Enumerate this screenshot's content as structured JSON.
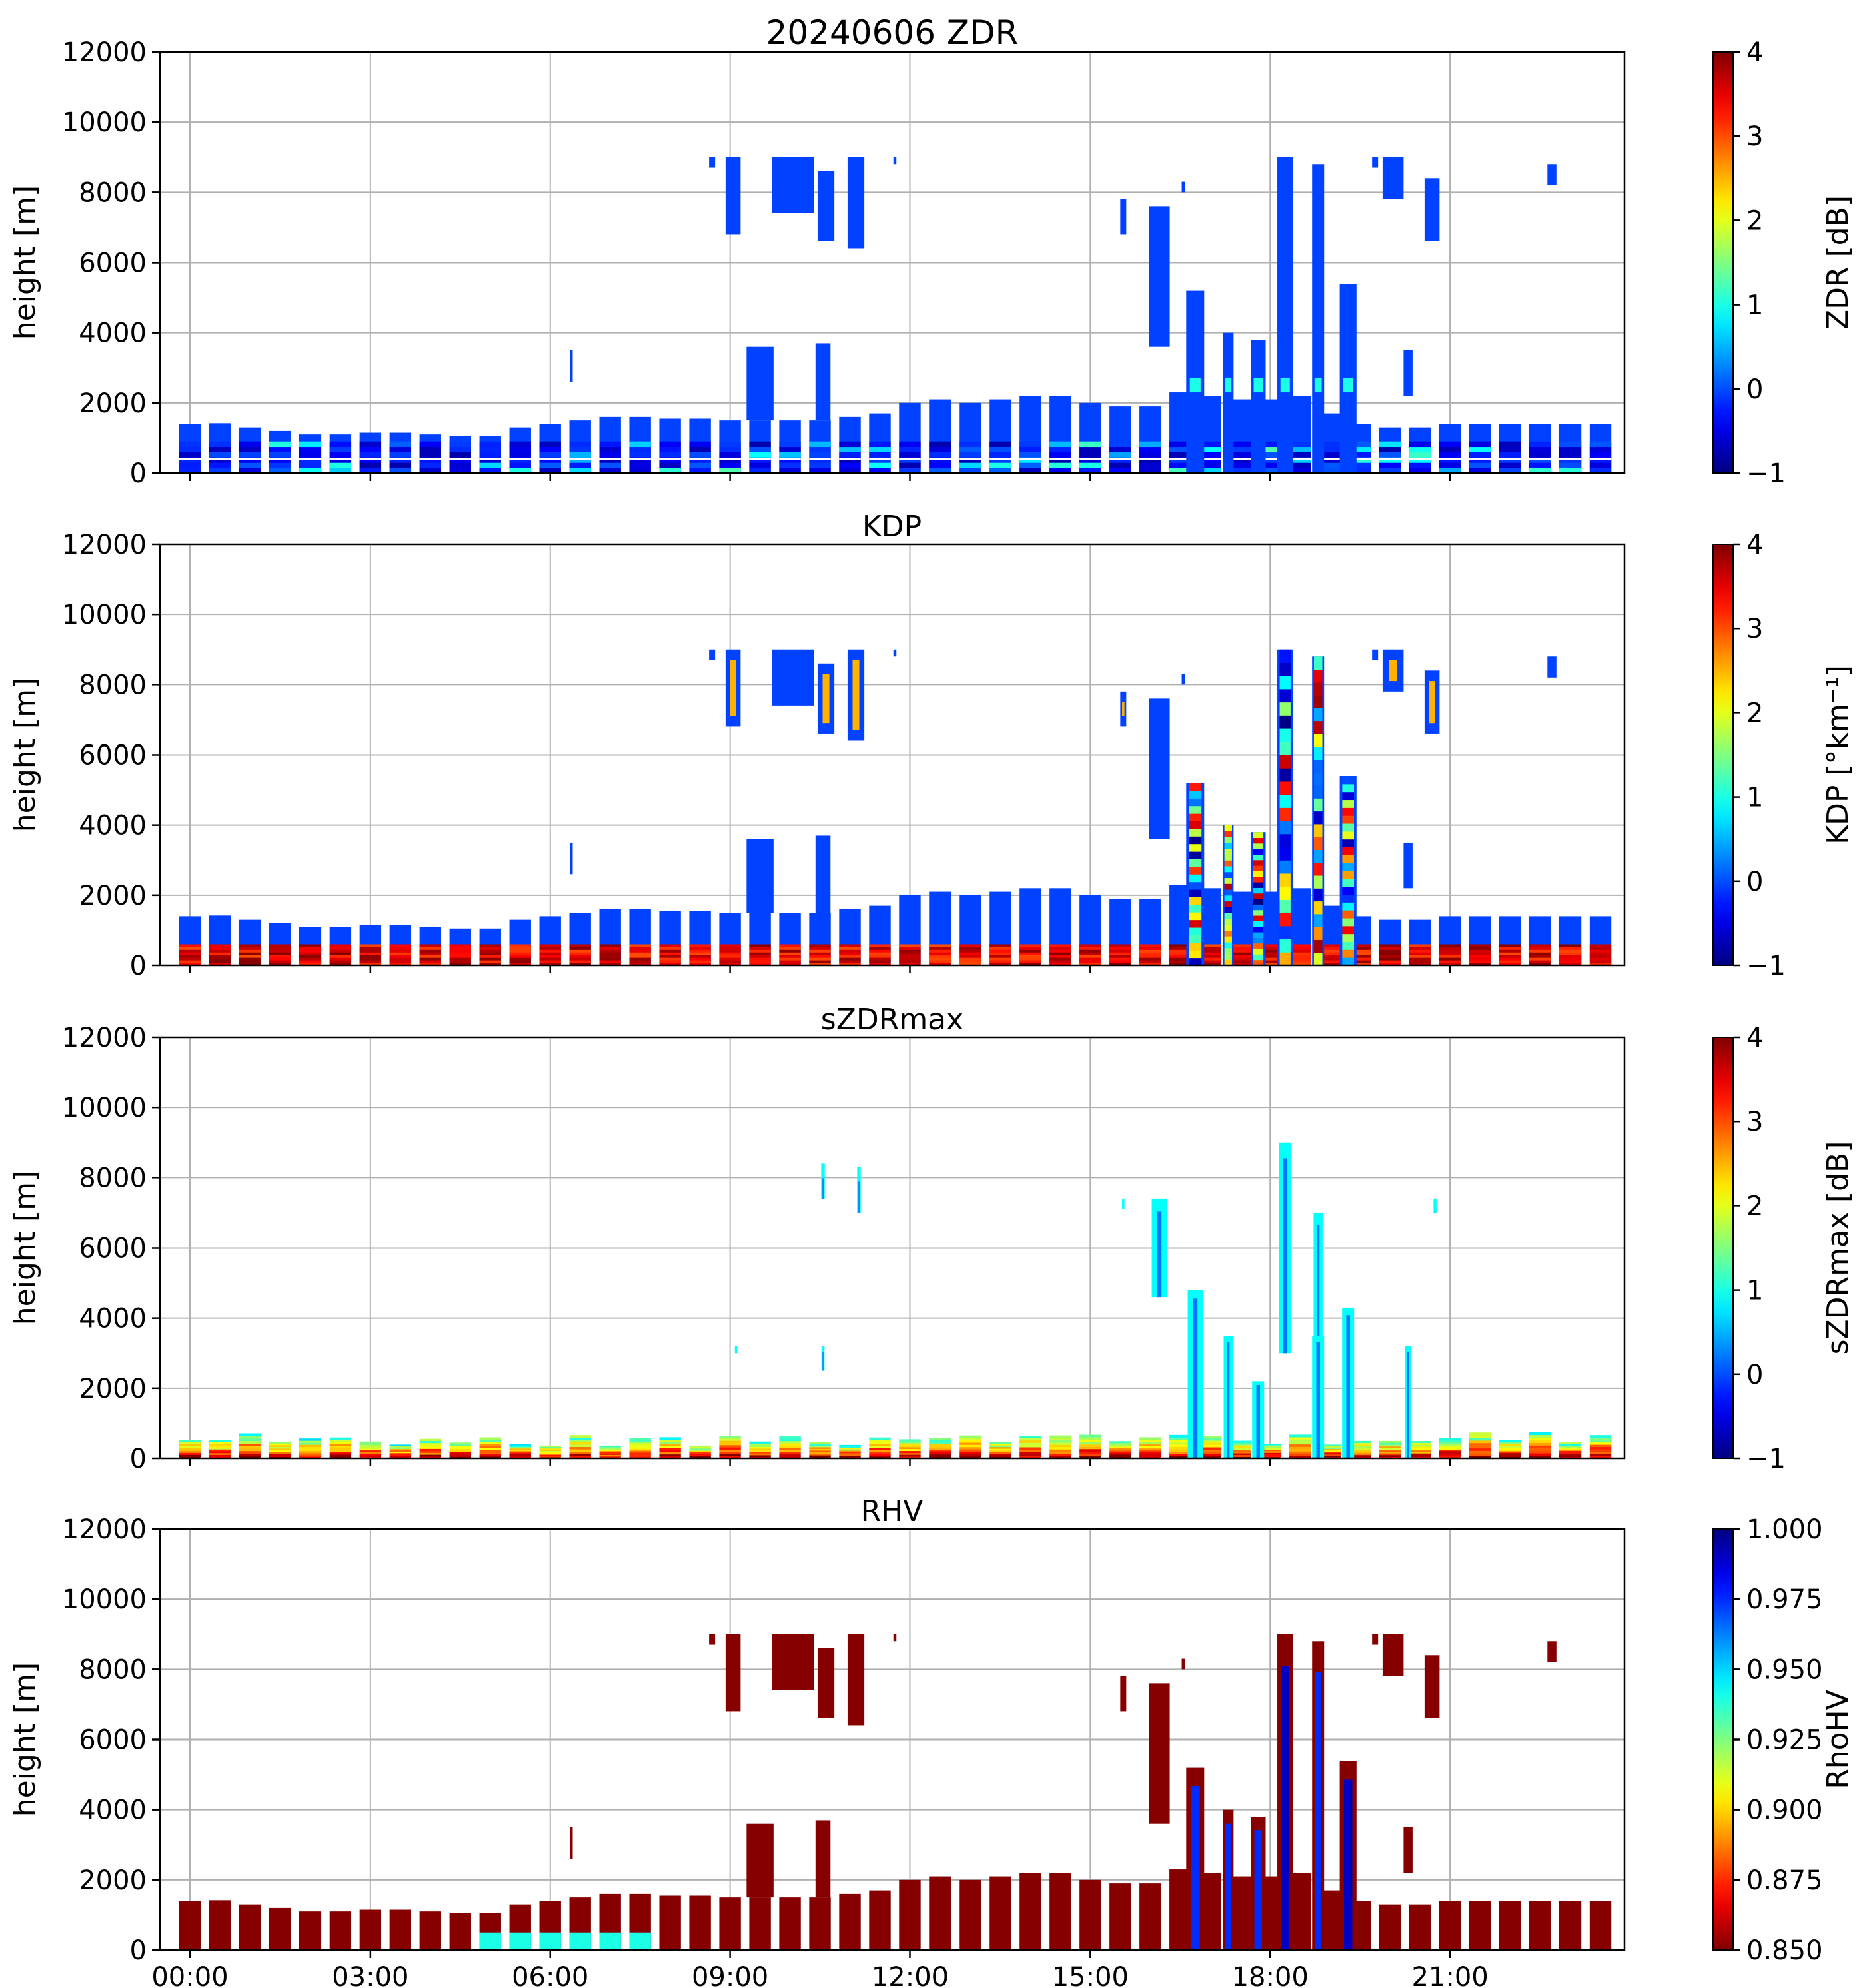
{
  "figure_title": "20240606 ZDR",
  "chart_data": [
    {
      "type": "heatmap",
      "title": "20240606 ZDR",
      "xlabel": "",
      "ylabel": "height [m]",
      "xlim": [
        -0.5,
        23.9
      ],
      "ylim": [
        0,
        12000
      ],
      "yticks": [
        0,
        2000,
        4000,
        6000,
        8000,
        10000,
        12000
      ],
      "xticks": [
        0,
        3,
        6,
        9,
        12,
        15,
        18,
        21
      ],
      "xtick_labels": [
        "00:00",
        "03:00",
        "06:00",
        "09:00",
        "12:00",
        "15:00",
        "18:00",
        "21:00"
      ],
      "show_xtick_labels": false,
      "grid": true,
      "colormap": "jet",
      "colorbar": {
        "label": "ZDR [dB]",
        "range": [
          -1,
          4
        ],
        "ticks": [
          -1,
          0,
          1,
          2,
          3,
          4
        ],
        "tick_labels": [
          "−1",
          "0",
          "1",
          "2",
          "3",
          "4"
        ],
        "reversed": false
      },
      "field": "zdr"
    },
    {
      "type": "heatmap",
      "title": "KDP",
      "xlabel": "",
      "ylabel": "height [m]",
      "xlim": [
        -0.5,
        23.9
      ],
      "ylim": [
        0,
        12000
      ],
      "yticks": [
        0,
        2000,
        4000,
        6000,
        8000,
        10000,
        12000
      ],
      "xticks": [
        0,
        3,
        6,
        9,
        12,
        15,
        18,
        21
      ],
      "xtick_labels": [
        "00:00",
        "03:00",
        "06:00",
        "09:00",
        "12:00",
        "15:00",
        "18:00",
        "21:00"
      ],
      "show_xtick_labels": false,
      "grid": true,
      "colormap": "jet",
      "colorbar": {
        "label": "KDP [°km⁻¹]",
        "range": [
          -1,
          4
        ],
        "ticks": [
          -1,
          0,
          1,
          2,
          3,
          4
        ],
        "tick_labels": [
          "−1",
          "0",
          "1",
          "2",
          "3",
          "4"
        ],
        "reversed": false
      },
      "field": "kdp"
    },
    {
      "type": "heatmap",
      "title": "sZDRmax",
      "xlabel": "",
      "ylabel": "height [m]",
      "xlim": [
        -0.5,
        23.9
      ],
      "ylim": [
        0,
        12000
      ],
      "yticks": [
        0,
        2000,
        4000,
        6000,
        8000,
        10000,
        12000
      ],
      "xticks": [
        0,
        3,
        6,
        9,
        12,
        15,
        18,
        21
      ],
      "xtick_labels": [
        "00:00",
        "03:00",
        "06:00",
        "09:00",
        "12:00",
        "15:00",
        "18:00",
        "21:00"
      ],
      "show_xtick_labels": false,
      "grid": true,
      "colormap": "jet",
      "colorbar": {
        "label": "sZDRmax [dB]",
        "range": [
          -1,
          4
        ],
        "ticks": [
          -1,
          0,
          1,
          2,
          3,
          4
        ],
        "tick_labels": [
          "−1",
          "0",
          "1",
          "2",
          "3",
          "4"
        ],
        "reversed": false
      },
      "field": "szdr"
    },
    {
      "type": "heatmap",
      "title": "RHV",
      "xlabel": "",
      "ylabel": "height [m]",
      "xlim": [
        -0.5,
        23.9
      ],
      "ylim": [
        0,
        12000
      ],
      "yticks": [
        0,
        2000,
        4000,
        6000,
        8000,
        10000,
        12000
      ],
      "xticks": [
        0,
        3,
        6,
        9,
        12,
        15,
        18,
        21
      ],
      "xtick_labels": [
        "00:00",
        "03:00",
        "06:00",
        "09:00",
        "12:00",
        "15:00",
        "18:00",
        "21:00"
      ],
      "show_xtick_labels": true,
      "grid": true,
      "colormap": "jet_r",
      "colorbar": {
        "label": "RhoHV",
        "range": [
          0.85,
          1.0
        ],
        "ticks": [
          0.85,
          0.875,
          0.9,
          0.925,
          0.95,
          0.975,
          1.0
        ],
        "tick_labels": [
          "0.850",
          "0.875",
          "0.900",
          "0.925",
          "0.950",
          "0.975",
          "1.000"
        ],
        "reversed": true
      },
      "field": "rhv"
    }
  ],
  "scans": {
    "boundary_layer_tops_m": [
      1400,
      1420,
      1300,
      1200,
      1100,
      1100,
      1150,
      1150,
      1100,
      1050,
      1050,
      1300,
      1400,
      1500,
      1600,
      1600,
      1550,
      1550,
      1500,
      1500,
      1500,
      1500,
      1600,
      1700,
      2000,
      2100,
      2000,
      2100,
      2200,
      2200,
      2000,
      1900,
      1900,
      2300,
      2200,
      2100,
      2100,
      2200,
      1700,
      1400,
      1300,
      1300,
      1400,
      1400,
      1400,
      1400,
      1400,
      1400,
      1400
    ],
    "cells": [
      {
        "t": 9.05,
        "w": 0.25,
        "y0": 6800,
        "y1": 9000
      },
      {
        "t": 10.05,
        "w": 0.7,
        "y0": 7400,
        "y1": 9000
      },
      {
        "t": 10.6,
        "w": 0.28,
        "y0": 6600,
        "y1": 8600
      },
      {
        "t": 11.1,
        "w": 0.28,
        "y0": 6400,
        "y1": 9000
      },
      {
        "t": 8.7,
        "w": 0.1,
        "y0": 8700,
        "y1": 9000
      },
      {
        "t": 11.75,
        "w": 0.05,
        "y0": 8800,
        "y1": 9000
      },
      {
        "t": 9.5,
        "w": 0.45,
        "y0": 1500,
        "y1": 3600
      },
      {
        "t": 10.55,
        "w": 0.25,
        "y0": 1500,
        "y1": 3700
      },
      {
        "t": 6.35,
        "w": 0.05,
        "y0": 2600,
        "y1": 3500
      },
      {
        "t": 15.55,
        "w": 0.1,
        "y0": 6800,
        "y1": 7800
      },
      {
        "t": 16.15,
        "w": 0.35,
        "y0": 3600,
        "y1": 7600
      },
      {
        "t": 16.55,
        "w": 0.05,
        "y0": 8000,
        "y1": 8300
      },
      {
        "t": 16.75,
        "w": 0.3,
        "y0": 0,
        "y1": 5200
      },
      {
        "t": 17.3,
        "w": 0.18,
        "y0": 0,
        "y1": 4000
      },
      {
        "t": 17.8,
        "w": 0.25,
        "y0": 0,
        "y1": 3800
      },
      {
        "t": 18.25,
        "w": 0.26,
        "y0": 0,
        "y1": 9000
      },
      {
        "t": 18.8,
        "w": 0.2,
        "y0": 0,
        "y1": 8800
      },
      {
        "t": 19.3,
        "w": 0.28,
        "y0": 0,
        "y1": 5400
      },
      {
        "t": 19.75,
        "w": 0.1,
        "y0": 8700,
        "y1": 9000
      },
      {
        "t": 20.05,
        "w": 0.35,
        "y0": 7800,
        "y1": 9000
      },
      {
        "t": 20.3,
        "w": 0.15,
        "y0": 2200,
        "y1": 3500
      },
      {
        "t": 20.7,
        "w": 0.25,
        "y0": 6600,
        "y1": 8400
      },
      {
        "t": 22.7,
        "w": 0.15,
        "y0": 8200,
        "y1": 8800
      }
    ],
    "szdr_features": [
      {
        "t": 10.55,
        "w": 0.06,
        "y0": 7400,
        "y1": 8400
      },
      {
        "t": 11.15,
        "w": 0.06,
        "y0": 7000,
        "y1": 8300
      },
      {
        "t": 16.15,
        "w": 0.25,
        "y0": 4600,
        "y1": 7400
      },
      {
        "t": 16.75,
        "w": 0.25,
        "y0": 0,
        "y1": 4800
      },
      {
        "t": 17.3,
        "w": 0.15,
        "y0": 0,
        "y1": 3500
      },
      {
        "t": 17.8,
        "w": 0.2,
        "y0": 0,
        "y1": 2200
      },
      {
        "t": 18.25,
        "w": 0.2,
        "y0": 3000,
        "y1": 9000
      },
      {
        "t": 18.8,
        "w": 0.15,
        "y0": 3400,
        "y1": 7000
      },
      {
        "t": 18.8,
        "w": 0.2,
        "y0": 0,
        "y1": 3500
      },
      {
        "t": 19.3,
        "w": 0.2,
        "y0": 0,
        "y1": 4300
      },
      {
        "t": 20.3,
        "w": 0.1,
        "y0": 0,
        "y1": 3200
      },
      {
        "t": 10.55,
        "w": 0.05,
        "y0": 2500,
        "y1": 3200
      },
      {
        "t": 9.1,
        "w": 0.04,
        "y0": 3000,
        "y1": 3200
      },
      {
        "t": 15.55,
        "w": 0.04,
        "y0": 7100,
        "y1": 7400
      },
      {
        "t": 20.75,
        "w": 0.05,
        "y0": 7000,
        "y1": 7400
      }
    ]
  }
}
